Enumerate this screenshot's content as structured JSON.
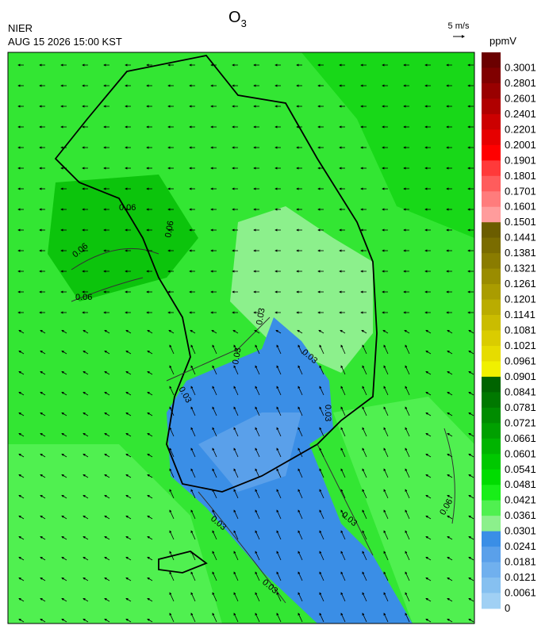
{
  "header": {
    "title": {
      "main": "O",
      "subscript": "3"
    },
    "agency": "NIER",
    "timestamp": "AUG 15 2026 15:00 KST",
    "wind_scale": "5 m/s",
    "unit": "ppmV"
  },
  "colorbar": {
    "labels": [
      "0.3001",
      "0.2801",
      "0.2601",
      "0.2401",
      "0.2201",
      "0.2001",
      "0.1901",
      "0.1801",
      "0.1701",
      "0.1601",
      "0.1501",
      "0.1441",
      "0.1381",
      "0.1321",
      "0.1261",
      "0.1201",
      "0.1141",
      "0.1081",
      "0.1021",
      "0.0961",
      "0.0901",
      "0.0841",
      "0.0781",
      "0.0721",
      "0.0661",
      "0.0601",
      "0.0541",
      "0.0481",
      "0.0421",
      "0.0361",
      "0.0301",
      "0.0241",
      "0.0181",
      "0.0121",
      "0.0061",
      "0"
    ],
    "colors": [
      "#6b0000",
      "#800000",
      "#990000",
      "#b00000",
      "#cc0000",
      "#e60000",
      "#ff0000",
      "#ff3a3a",
      "#ff5c5c",
      "#ff7c7c",
      "#ff9c9c",
      "#6b5d00",
      "#7a6c00",
      "#8a7c00",
      "#9a8c00",
      "#aa9c00",
      "#baac00",
      "#cabc00",
      "#dacc00",
      "#e6dc00",
      "#f0f000",
      "#006400",
      "#007800",
      "#008c00",
      "#00a000",
      "#00b400",
      "#00c800",
      "#00dc00",
      "#18ee18",
      "#50f050",
      "#8cf08c",
      "#3a8ee6",
      "#5aa0ea",
      "#70b0ee",
      "#86c0f0",
      "#a0d0f4"
    ]
  },
  "contour_labels": [
    "0.06",
    "0.06",
    "0.06",
    "0.06",
    "0.06",
    "0.03",
    "0.03",
    "0.03",
    "0.03",
    "0.03",
    "0.03",
    "0.03",
    "0.03"
  ]
}
